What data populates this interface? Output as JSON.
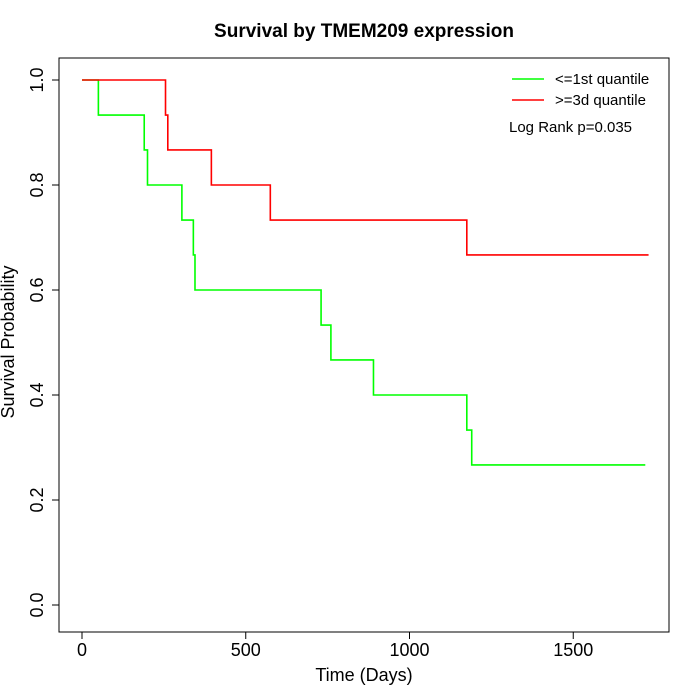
{
  "chart_data": {
    "type": "line",
    "title": "Survival by TMEM209 expression",
    "xlabel": "Time (Days)",
    "ylabel": "Survival Probability",
    "xlim": [
      0,
      1730
    ],
    "ylim": [
      0,
      1
    ],
    "x_ticks": [
      0,
      500,
      1000,
      1500
    ],
    "x_tick_labels": [
      "0",
      "500",
      "1000",
      "1500"
    ],
    "y_ticks": [
      0,
      0.2,
      0.4,
      0.6,
      0.8,
      1
    ],
    "y_tick_labels": [
      "0.0",
      "0.2",
      "0.4",
      "0.6",
      "0.8",
      "1.0"
    ],
    "grid": false,
    "legend_position": "top-right",
    "annotation": "Log Rank p=0.035",
    "series": [
      {
        "name": "<=1st quantile",
        "color": "#00ff00",
        "step": true,
        "x": [
          0,
          50,
          190,
          200,
          305,
          340,
          345,
          730,
          760,
          890,
          1175,
          1190,
          1720
        ],
        "y": [
          1.0,
          0.9333,
          0.8667,
          0.8,
          0.7333,
          0.6667,
          0.6,
          0.5333,
          0.4667,
          0.4,
          0.3333,
          0.2667,
          0.2667
        ]
      },
      {
        "name": ">=3d quantile",
        "color": "#ff0000",
        "step": true,
        "x": [
          0,
          255,
          262,
          395,
          575,
          1175,
          1730
        ],
        "y": [
          1.0,
          0.9333,
          0.8667,
          0.8,
          0.7333,
          0.6667,
          0.6667
        ]
      }
    ]
  }
}
